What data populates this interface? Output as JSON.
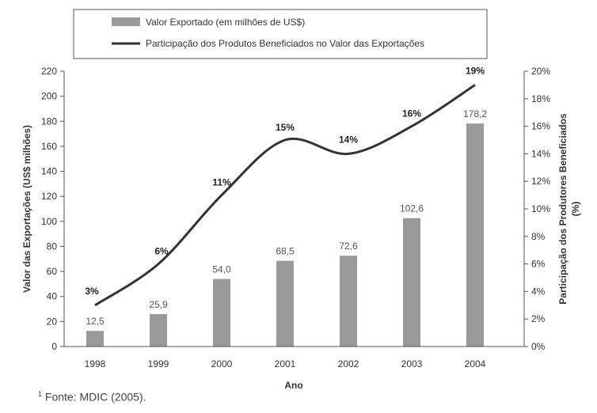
{
  "chart_data": {
    "type": "bar+line",
    "categories": [
      "1998",
      "1999",
      "2000",
      "2001",
      "2002",
      "2003",
      "2004"
    ],
    "series": [
      {
        "name": "Valor Exportado (em milhões de US$)",
        "type": "bar",
        "axis": "left",
        "values": [
          12.5,
          25.9,
          54.0,
          68.5,
          72.6,
          102.6,
          178.2
        ],
        "labels": [
          "12,5",
          "25,9",
          "54,0",
          "68,5",
          "72,6",
          "102,6",
          "178,2"
        ],
        "color": "#9a9a9a"
      },
      {
        "name": "Participação dos Produtos Beneficiados no Valor das Exportações",
        "type": "line",
        "axis": "right",
        "values": [
          3,
          6,
          11,
          15,
          14,
          16,
          19
        ],
        "labels": [
          "3%",
          "6%",
          "11%",
          "15%",
          "14%",
          "16%",
          "19%"
        ],
        "color": "#333333"
      }
    ],
    "xlabel": "Ano",
    "ylabel": "Valor das Exportações (US$ milhões)",
    "y2label_line1": "Participação dos Produtores Beneficiados",
    "y2label_line2": "(%)",
    "ylim": [
      0,
      220
    ],
    "yticks": [
      "0",
      "20",
      "40",
      "60",
      "80",
      "100",
      "120",
      "140",
      "160",
      "180",
      "200",
      "220"
    ],
    "y2lim": [
      0,
      20
    ],
    "y2ticks": [
      "0%",
      "2%",
      "4%",
      "6%",
      "8%",
      "10%",
      "12%",
      "14%",
      "16%",
      "18%",
      "20%"
    ],
    "grid": false,
    "legend_position": "top"
  },
  "footnote": {
    "marker": "1",
    "text": "Fonte: MDIC (2005)."
  }
}
